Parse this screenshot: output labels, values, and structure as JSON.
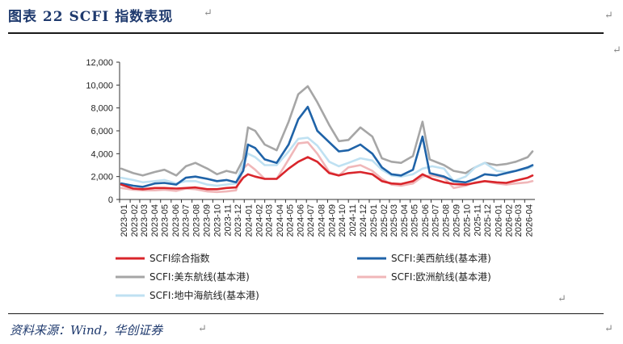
{
  "header": {
    "title": "图表 22   SCFI 指数表现",
    "return_mark": "↵"
  },
  "source": "资料来源：Wind，华创证券",
  "chart_data": {
    "type": "line",
    "title": "图表 22 SCFI 指数表现",
    "xlabel": "",
    "ylabel": "",
    "ylim": [
      0,
      12000
    ],
    "yticks": [
      0,
      2000,
      4000,
      6000,
      8000,
      10000,
      12000
    ],
    "ytick_labels": [
      "0",
      "2,000",
      "4,000",
      "6,000",
      "8,000",
      "10,000",
      "12,000"
    ],
    "xtick_labels": [
      "2023-01",
      "2023-02",
      "2023-03",
      "2023-04",
      "2023-05",
      "2023-06",
      "2023-07",
      "2023-08",
      "2023-09",
      "2023-10",
      "2023-11",
      "2023-12",
      "2024-01",
      "2024-02",
      "2024-03",
      "2024-04",
      "2024-05",
      "2024-06",
      "2024-07",
      "2024-08",
      "2024-09",
      "2024-10",
      "2024-11",
      "2024-12",
      "2025-01",
      "2025-02",
      "2025-03",
      "2025-04",
      "2025-05",
      "2025-06",
      "2025-07",
      "2025-08",
      "2025-09",
      "2025-10",
      "2025-11",
      "2025-12",
      "2026-01",
      "2026-02",
      "2026-03",
      "2026-04"
    ],
    "grid": false,
    "legend_position": "bottom",
    "series": [
      {
        "name": "SCFI综合指数",
        "color": "#d9252b",
        "x": [
          "2023-01-06",
          "2023-02-10",
          "2023-03-10",
          "2023-04-14",
          "2023-05-12",
          "2023-06-16",
          "2023-07-14",
          "2023-08-11",
          "2023-09-15",
          "2023-10-13",
          "2023-11-10",
          "2023-12-08",
          "2023-12-29",
          "2024-01-12",
          "2024-02-02",
          "2024-03-01",
          "2024-04-05",
          "2024-05-10",
          "2024-06-07",
          "2024-07-05",
          "2024-08-02",
          "2024-09-06",
          "2024-10-04",
          "2024-11-01",
          "2024-12-06",
          "2025-01-10",
          "2025-02-07",
          "2025-03-07",
          "2025-04-04",
          "2025-05-09",
          "2025-06-06",
          "2025-07-04",
          "2025-08-08",
          "2025-09-05",
          "2025-10-10",
          "2025-11-07",
          "2025-12-05",
          "2026-01-09",
          "2026-02-06",
          "2026-03-06",
          "2026-04-10",
          "2026-04-24"
        ],
        "values": [
          1300,
          950,
          900,
          1000,
          1000,
          950,
          1000,
          1050,
          900,
          900,
          1000,
          1050,
          1900,
          2200,
          2000,
          1800,
          1800,
          2700,
          3300,
          3700,
          3300,
          2300,
          2100,
          2300,
          2400,
          2200,
          1600,
          1400,
          1350,
          1600,
          2200,
          1800,
          1500,
          1350,
          1300,
          1450,
          1600,
          1500,
          1450,
          1650,
          1900,
          2100
        ]
      },
      {
        "name": "SCFI:美西航线(基本港)",
        "color": "#1f63a8",
        "x": [
          "2023-01-06",
          "2023-02-10",
          "2023-03-10",
          "2023-04-14",
          "2023-05-12",
          "2023-06-16",
          "2023-07-14",
          "2023-08-11",
          "2023-09-15",
          "2023-10-13",
          "2023-11-10",
          "2023-12-08",
          "2023-12-29",
          "2024-01-12",
          "2024-02-02",
          "2024-03-01",
          "2024-04-05",
          "2024-05-10",
          "2024-06-07",
          "2024-07-05",
          "2024-08-02",
          "2024-09-06",
          "2024-10-04",
          "2024-11-01",
          "2024-12-06",
          "2025-01-10",
          "2025-02-07",
          "2025-03-07",
          "2025-04-04",
          "2025-05-09",
          "2025-06-06",
          "2025-06-27",
          "2025-08-08",
          "2025-09-05",
          "2025-10-10",
          "2025-11-07",
          "2025-12-05",
          "2026-01-09",
          "2026-02-06",
          "2026-03-06",
          "2026-04-10",
          "2026-04-24"
        ],
        "values": [
          1400,
          1200,
          1100,
          1400,
          1450,
          1300,
          1900,
          2000,
          1800,
          1600,
          1700,
          1500,
          2500,
          4800,
          4500,
          3500,
          3200,
          4800,
          7000,
          8100,
          6000,
          5000,
          4200,
          4300,
          4800,
          4000,
          2800,
          2200,
          2100,
          2600,
          5500,
          2300,
          2000,
          1600,
          1500,
          1800,
          2200,
          2100,
          2300,
          2500,
          2800,
          3000
        ]
      },
      {
        "name": "SCFI:美东航线(基本港)",
        "color": "#a6a6a6",
        "x": [
          "2023-01-06",
          "2023-02-10",
          "2023-03-10",
          "2023-04-14",
          "2023-05-12",
          "2023-06-16",
          "2023-07-14",
          "2023-08-11",
          "2023-09-15",
          "2023-10-13",
          "2023-11-10",
          "2023-12-08",
          "2023-12-29",
          "2024-01-12",
          "2024-02-02",
          "2024-03-01",
          "2024-04-05",
          "2024-05-10",
          "2024-06-07",
          "2024-07-05",
          "2024-08-02",
          "2024-09-06",
          "2024-10-04",
          "2024-11-01",
          "2024-12-06",
          "2025-01-10",
          "2025-02-07",
          "2025-03-07",
          "2025-04-04",
          "2025-05-09",
          "2025-06-06",
          "2025-06-27",
          "2025-08-08",
          "2025-09-05",
          "2025-10-10",
          "2025-11-07",
          "2025-12-05",
          "2026-01-09",
          "2026-02-06",
          "2026-03-06",
          "2026-04-10",
          "2026-04-24"
        ],
        "values": [
          2700,
          2300,
          2100,
          2400,
          2600,
          2100,
          2900,
          3200,
          2700,
          2200,
          2500,
          2300,
          3500,
          6300,
          6000,
          4800,
          4300,
          6800,
          9200,
          9900,
          8500,
          6500,
          5100,
          5200,
          6300,
          5500,
          3600,
          3300,
          3200,
          3800,
          6800,
          3500,
          3000,
          2500,
          2300,
          2800,
          3200,
          3000,
          3100,
          3300,
          3700,
          4200
        ]
      },
      {
        "name": "SCFI:欧洲航线(基本港)",
        "color": "#f0b7b9",
        "x": [
          "2023-01-06",
          "2023-02-10",
          "2023-03-10",
          "2023-04-14",
          "2023-05-12",
          "2023-06-16",
          "2023-07-14",
          "2023-08-11",
          "2023-09-15",
          "2023-10-13",
          "2023-11-10",
          "2023-12-08",
          "2023-12-29",
          "2024-01-12",
          "2024-02-02",
          "2024-03-01",
          "2024-04-05",
          "2024-05-10",
          "2024-06-07",
          "2024-07-05",
          "2024-08-02",
          "2024-09-06",
          "2024-10-04",
          "2024-11-01",
          "2024-12-06",
          "2025-01-10",
          "2025-02-07",
          "2025-03-07",
          "2025-04-04",
          "2025-05-09",
          "2025-06-06",
          "2025-07-04",
          "2025-08-08",
          "2025-09-05",
          "2025-10-10",
          "2025-11-07",
          "2025-12-05",
          "2026-01-09",
          "2026-02-06",
          "2026-03-06",
          "2026-04-10",
          "2026-04-24"
        ],
        "values": [
          1000,
          850,
          800,
          800,
          850,
          750,
          950,
          900,
          700,
          650,
          700,
          800,
          2700,
          3100,
          2600,
          1800,
          1800,
          3500,
          4900,
          5000,
          4000,
          2400,
          2100,
          2800,
          3000,
          2500,
          1800,
          1300,
          1200,
          1400,
          2000,
          2100,
          1900,
          1000,
          1200,
          1500,
          1600,
          1400,
          1300,
          1400,
          1500,
          1600
        ]
      },
      {
        "name": "SCFI:地中海航线(基本港)",
        "color": "#bfe1f2",
        "x": [
          "2023-01-06",
          "2023-02-10",
          "2023-03-10",
          "2023-04-14",
          "2023-05-12",
          "2023-06-16",
          "2023-07-14",
          "2023-08-11",
          "2023-09-15",
          "2023-10-13",
          "2023-11-10",
          "2023-12-08",
          "2023-12-29",
          "2024-01-12",
          "2024-02-02",
          "2024-03-01",
          "2024-04-05",
          "2024-05-10",
          "2024-06-07",
          "2024-07-05",
          "2024-08-02",
          "2024-09-06",
          "2024-10-04",
          "2024-11-01",
          "2024-12-06",
          "2025-01-10",
          "2025-02-07",
          "2025-03-07",
          "2025-04-04",
          "2025-05-09",
          "2025-06-06",
          "2025-07-04",
          "2025-08-08",
          "2025-09-05",
          "2025-10-10",
          "2025-11-07",
          "2025-12-05",
          "2026-01-09",
          "2026-02-06",
          "2026-03-06",
          "2026-04-10",
          "2026-04-24"
        ],
        "values": [
          1900,
          1700,
          1500,
          1600,
          1700,
          1400,
          1600,
          1600,
          1300,
          1200,
          1300,
          1400,
          3200,
          4000,
          3700,
          3000,
          3000,
          4200,
          5300,
          5400,
          4700,
          3300,
          2900,
          3200,
          3600,
          3400,
          2600,
          2100,
          2000,
          2200,
          2700,
          2900,
          2700,
          1600,
          2000,
          2800,
          3200,
          2500,
          2400,
          2500,
          2700,
          2900
        ]
      }
    ]
  }
}
